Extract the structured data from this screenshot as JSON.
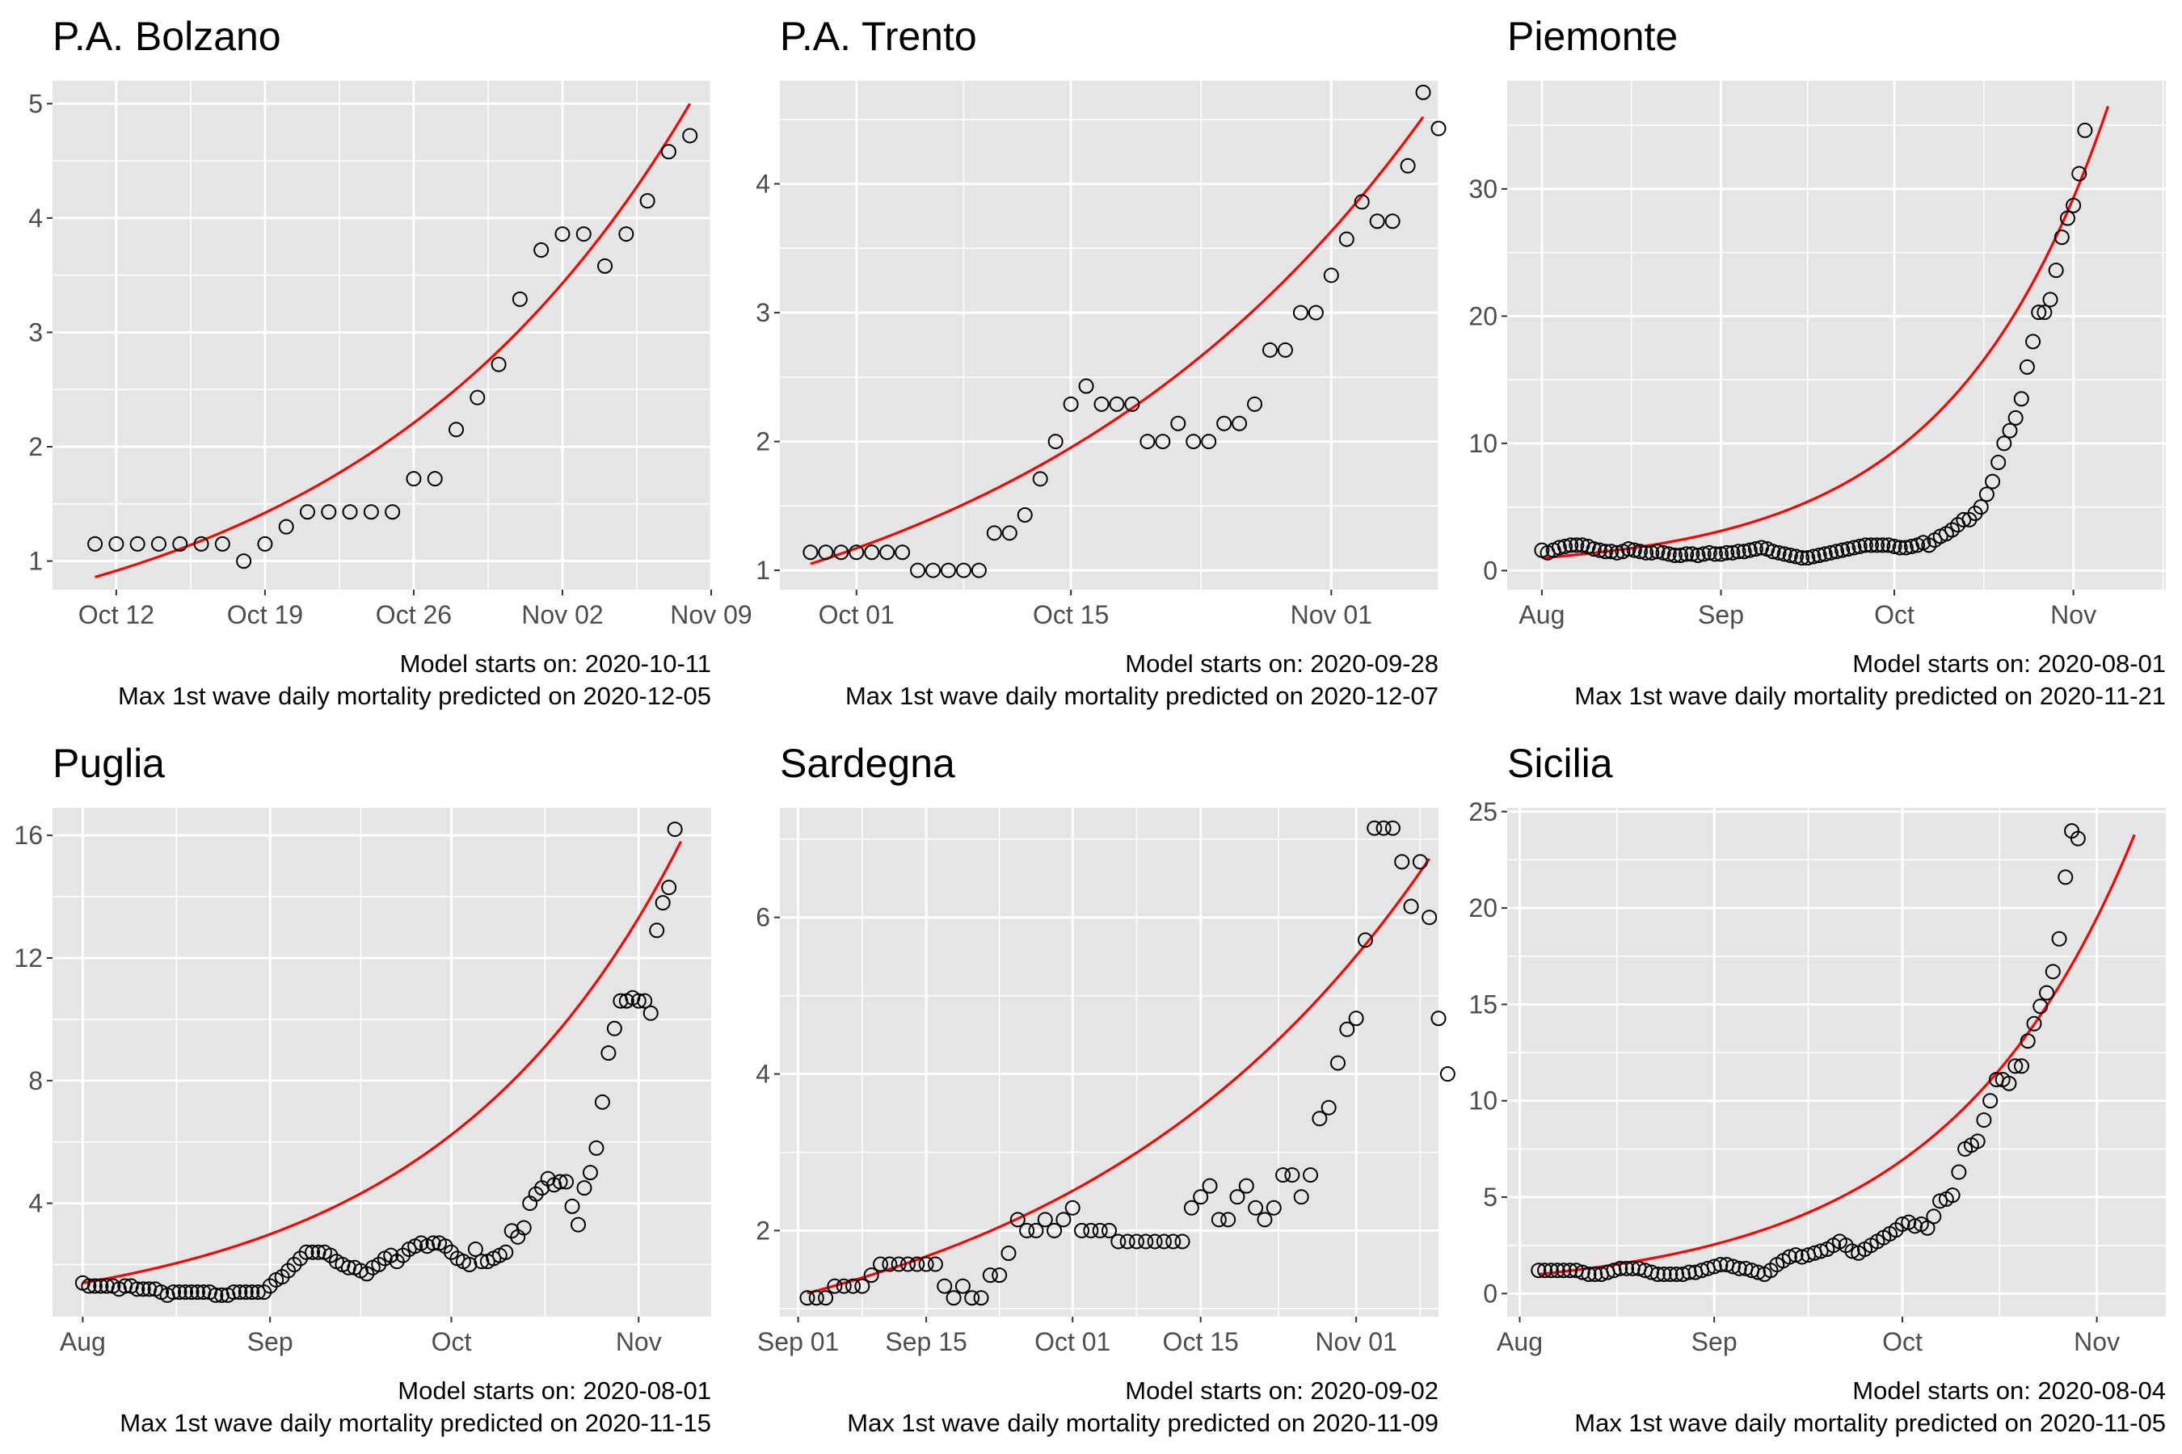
{
  "figure": {
    "background": "#ffffff",
    "panel_background": "#e5e5e5",
    "grid_color": "#ffffff",
    "point_color": "#000000",
    "fit_color": "#ff0000"
  },
  "chart_data": [
    {
      "type": "scatter",
      "title": "P.A. Bolzano",
      "start_label": "Model starts on: 2020-10-11",
      "peak_label": "Max 1st wave daily mortality predicted on 2020-12-05",
      "x_unit": "date",
      "x_range": [
        "2020-10-09",
        "2020-11-09"
      ],
      "xticks": [
        {
          "date": "2020-10-12",
          "label": "Oct 12"
        },
        {
          "date": "2020-10-19",
          "label": "Oct 19"
        },
        {
          "date": "2020-10-26",
          "label": "Oct 26"
        },
        {
          "date": "2020-11-02",
          "label": "Nov 02"
        },
        {
          "date": "2020-11-09",
          "label": "Nov 09"
        }
      ],
      "y_range": [
        0.75,
        5.2
      ],
      "yticks": [
        1,
        2,
        3,
        4,
        5
      ],
      "grid": true,
      "x_start": "2020-10-11",
      "observed": [
        1.15,
        1.15,
        1.15,
        1.15,
        1.15,
        1.15,
        1.15,
        1.0,
        1.15,
        1.3,
        1.43,
        1.43,
        1.43,
        1.43,
        1.43,
        1.72,
        1.72,
        2.15,
        2.43,
        2.72,
        3.29,
        3.72,
        3.86,
        3.86,
        3.58,
        3.86,
        4.15,
        4.58,
        4.72
      ],
      "fit": {
        "dates": [
          "2020-10-11",
          "2020-11-08"
        ],
        "values": [
          0.86,
          5.0
        ]
      }
    },
    {
      "type": "scatter",
      "title": "P.A. Trento",
      "start_label": "Model starts on: 2020-09-28",
      "peak_label": "Max 1st wave daily mortality predicted on 2020-12-07",
      "x_unit": "date",
      "x_range": [
        "2020-09-26",
        "2020-11-08"
      ],
      "xticks": [
        {
          "date": "2020-10-01",
          "label": "Oct 01"
        },
        {
          "date": "2020-10-15",
          "label": "Oct 15"
        },
        {
          "date": "2020-11-01",
          "label": "Nov 01"
        }
      ],
      "y_range": [
        0.85,
        4.8
      ],
      "yticks": [
        1,
        2,
        3,
        4
      ],
      "grid": true,
      "x_start": "2020-09-28",
      "observed": [
        1.14,
        1.14,
        1.14,
        1.14,
        1.14,
        1.14,
        1.14,
        1.0,
        1.0,
        1.0,
        1.0,
        1.0,
        1.29,
        1.29,
        1.43,
        1.71,
        2.0,
        2.29,
        2.43,
        2.29,
        2.29,
        2.29,
        2.0,
        2.0,
        2.14,
        2.0,
        2.0,
        2.14,
        2.14,
        2.29,
        2.71,
        2.71,
        3.0,
        3.0,
        3.29,
        3.57,
        3.86,
        3.71,
        3.71,
        4.14,
        4.71,
        4.43
      ],
      "fit": {
        "dates": [
          "2020-09-28",
          "2020-11-07"
        ],
        "values": [
          1.05,
          4.52
        ]
      }
    },
    {
      "type": "scatter",
      "title": "Piemonte",
      "start_label": "Model starts on: 2020-08-01",
      "peak_label": "Max 1st wave daily mortality predicted on 2020-11-21",
      "x_unit": "date",
      "x_range": [
        "2020-07-26",
        "2020-11-17"
      ],
      "xticks": [
        {
          "date": "2020-08-01",
          "label": "Aug"
        },
        {
          "date": "2020-09-01",
          "label": "Sep"
        },
        {
          "date": "2020-10-01",
          "label": "Oct"
        },
        {
          "date": "2020-11-01",
          "label": "Nov"
        }
      ],
      "y_range": [
        -1.5,
        38.5
      ],
      "yticks": [
        0,
        10,
        20,
        30
      ],
      "grid": true,
      "x_start": "2020-08-01",
      "observed": [
        1.6,
        1.4,
        1.6,
        1.8,
        1.9,
        2.0,
        2.0,
        2.0,
        1.9,
        1.7,
        1.6,
        1.5,
        1.5,
        1.4,
        1.5,
        1.7,
        1.6,
        1.5,
        1.4,
        1.4,
        1.5,
        1.4,
        1.3,
        1.2,
        1.2,
        1.3,
        1.3,
        1.2,
        1.3,
        1.4,
        1.3,
        1.3,
        1.4,
        1.4,
        1.5,
        1.5,
        1.6,
        1.7,
        1.8,
        1.7,
        1.5,
        1.4,
        1.3,
        1.2,
        1.1,
        1.0,
        1.0,
        1.1,
        1.2,
        1.3,
        1.4,
        1.5,
        1.6,
        1.7,
        1.8,
        1.9,
        2.0,
        2.0,
        2.0,
        2.0,
        2.0,
        1.9,
        1.8,
        1.8,
        1.9,
        2.0,
        2.2,
        2.0,
        2.4,
        2.7,
        2.9,
        3.2,
        3.6,
        4.0,
        4.0,
        4.5,
        5.0,
        6.0,
        7.0,
        8.5,
        10.0,
        11.0,
        12.0,
        13.5,
        16.0,
        18.0,
        20.3,
        20.3,
        21.3,
        23.6,
        26.2,
        27.7,
        28.7,
        31.2,
        34.6
      ],
      "fit": {
        "dates": [
          "2020-08-01",
          "2020-11-07"
        ],
        "values": [
          1.0,
          36.5
        ]
      }
    },
    {
      "type": "scatter",
      "title": "Puglia",
      "start_label": "Model starts on: 2020-08-01",
      "peak_label": "Max 1st wave daily mortality predicted on 2020-11-15",
      "x_unit": "date",
      "x_range": [
        "2020-07-27",
        "2020-11-13"
      ],
      "xticks": [
        {
          "date": "2020-08-01",
          "label": "Aug"
        },
        {
          "date": "2020-09-01",
          "label": "Sep"
        },
        {
          "date": "2020-10-01",
          "label": "Oct"
        },
        {
          "date": "2020-11-01",
          "label": "Nov"
        }
      ],
      "y_range": [
        0.3,
        16.9
      ],
      "yticks": [
        4,
        8,
        12,
        16
      ],
      "grid": true,
      "x_start": "2020-08-01",
      "observed": [
        1.4,
        1.3,
        1.3,
        1.3,
        1.3,
        1.3,
        1.2,
        1.3,
        1.3,
        1.2,
        1.2,
        1.2,
        1.2,
        1.1,
        1.0,
        1.1,
        1.1,
        1.1,
        1.1,
        1.1,
        1.1,
        1.1,
        1.0,
        1.0,
        1.0,
        1.1,
        1.1,
        1.1,
        1.1,
        1.1,
        1.1,
        1.3,
        1.5,
        1.6,
        1.8,
        2.0,
        2.2,
        2.4,
        2.4,
        2.4,
        2.4,
        2.3,
        2.1,
        2.0,
        1.9,
        1.9,
        1.8,
        1.7,
        1.9,
        2.0,
        2.2,
        2.3,
        2.1,
        2.3,
        2.5,
        2.6,
        2.7,
        2.6,
        2.7,
        2.7,
        2.6,
        2.4,
        2.2,
        2.1,
        2.0,
        2.5,
        2.1,
        2.1,
        2.2,
        2.3,
        2.4,
        3.1,
        2.9,
        3.2,
        4.0,
        4.3,
        4.5,
        4.8,
        4.6,
        4.7,
        4.7,
        3.9,
        3.3,
        4.5,
        5.0,
        5.8,
        7.3,
        8.9,
        9.7,
        10.6,
        10.6,
        10.7,
        10.6,
        10.6,
        10.2,
        12.9,
        13.8,
        14.3,
        16.2
      ],
      "fit": {
        "dates": [
          "2020-08-01",
          "2020-11-08"
        ],
        "values": [
          1.4,
          15.8
        ]
      }
    },
    {
      "type": "scatter",
      "title": "Sardegna",
      "start_label": "Model starts on: 2020-09-02",
      "peak_label": "Max 1st wave daily mortality predicted on 2020-11-09",
      "x_unit": "date",
      "x_range": [
        "2020-08-30",
        "2020-11-10"
      ],
      "xticks": [
        {
          "date": "2020-09-01",
          "label": "Sep 01"
        },
        {
          "date": "2020-09-15",
          "label": "Sep 15"
        },
        {
          "date": "2020-10-01",
          "label": "Oct 01"
        },
        {
          "date": "2020-10-15",
          "label": "Oct 15"
        },
        {
          "date": "2020-11-01",
          "label": "Nov 01"
        }
      ],
      "y_range": [
        0.9,
        7.4
      ],
      "yticks": [
        2,
        4,
        6
      ],
      "grid": true,
      "x_start": "2020-09-02",
      "observed": [
        1.14,
        1.14,
        1.14,
        1.29,
        1.29,
        1.29,
        1.29,
        1.43,
        1.57,
        1.57,
        1.57,
        1.57,
        1.57,
        1.57,
        1.57,
        1.29,
        1.14,
        1.29,
        1.14,
        1.14,
        1.43,
        1.43,
        1.71,
        2.14,
        2.0,
        2.0,
        2.14,
        2.0,
        2.14,
        2.29,
        2.0,
        2.0,
        2.0,
        2.0,
        1.86,
        1.86,
        1.86,
        1.86,
        1.86,
        1.86,
        1.86,
        1.86,
        2.29,
        2.43,
        2.57,
        2.14,
        2.14,
        2.43,
        2.57,
        2.29,
        2.14,
        2.29,
        2.71,
        2.71,
        2.43,
        2.71,
        3.43,
        3.57,
        4.14,
        4.57,
        4.71,
        5.71,
        7.14,
        7.14,
        7.14,
        6.71,
        6.14,
        6.71,
        6.0,
        4.71,
        4.0
      ],
      "fit": {
        "dates": [
          "2020-09-02",
          "2020-11-09"
        ],
        "values": [
          1.2,
          6.75
        ]
      }
    },
    {
      "type": "scatter",
      "title": "Sicilia",
      "start_label": "Model starts on: 2020-08-04",
      "peak_label": "Max 1st wave daily mortality predicted on 2020-11-05",
      "x_unit": "date",
      "x_range": [
        "2020-07-30",
        "2020-11-12"
      ],
      "xticks": [
        {
          "date": "2020-08-01",
          "label": "Aug"
        },
        {
          "date": "2020-09-01",
          "label": "Sep"
        },
        {
          "date": "2020-10-01",
          "label": "Oct"
        },
        {
          "date": "2020-11-01",
          "label": "Nov"
        }
      ],
      "y_range": [
        -1.2,
        25.2
      ],
      "yticks": [
        0,
        5,
        10,
        15,
        20,
        25
      ],
      "grid": true,
      "x_start": "2020-08-04",
      "observed": [
        1.2,
        1.2,
        1.2,
        1.2,
        1.2,
        1.2,
        1.2,
        1.1,
        1.0,
        1.0,
        1.0,
        1.1,
        1.2,
        1.3,
        1.3,
        1.3,
        1.3,
        1.2,
        1.1,
        1.0,
        1.0,
        1.0,
        1.0,
        1.0,
        1.1,
        1.1,
        1.2,
        1.3,
        1.4,
        1.5,
        1.5,
        1.4,
        1.3,
        1.3,
        1.2,
        1.1,
        1.0,
        1.2,
        1.5,
        1.7,
        1.9,
        2.0,
        1.9,
        2.0,
        2.1,
        2.2,
        2.3,
        2.5,
        2.7,
        2.5,
        2.2,
        2.1,
        2.3,
        2.5,
        2.7,
        2.9,
        3.1,
        3.3,
        3.6,
        3.7,
        3.5,
        3.6,
        3.4,
        4.0,
        4.8,
        4.9,
        5.1,
        6.3,
        7.5,
        7.7,
        7.9,
        9.0,
        10.0,
        11.1,
        11.1,
        10.9,
        11.8,
        11.8,
        13.1,
        14.0,
        14.9,
        15.6,
        16.7,
        18.4,
        21.6,
        24.0,
        23.6
      ],
      "fit": {
        "dates": [
          "2020-08-04",
          "2020-11-07"
        ],
        "values": [
          1.0,
          23.8
        ]
      }
    }
  ]
}
